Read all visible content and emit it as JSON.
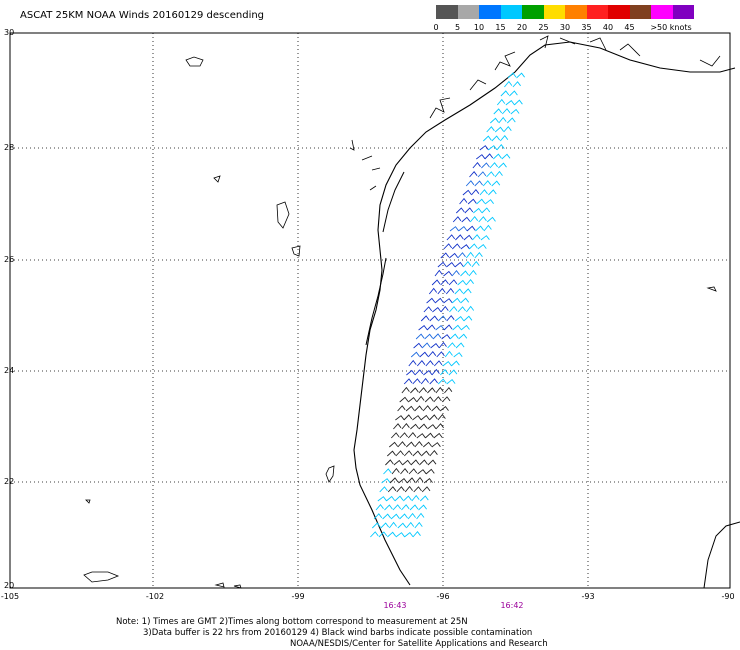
{
  "title": "ASCAT 25KM NOAA Winds 20160129 descending",
  "legend": {
    "colors": [
      "#555555",
      "#a8a8a8",
      "#0077ff",
      "#00c8ff",
      "#00a000",
      "#ffdd00",
      "#ff8000",
      "#ff2020",
      "#e00000",
      "#804020",
      "#ff00ff",
      "#8000c0"
    ],
    "labels": [
      "0",
      "5",
      "10",
      "15",
      "20",
      "25",
      "30",
      "35",
      "40",
      "45",
      ">50 knots"
    ]
  },
  "axes": {
    "lat_labels": [
      "30",
      "28",
      "26",
      "24",
      "22",
      "20"
    ],
    "lon_labels": [
      "-105",
      "-102",
      "-99",
      "-96",
      "-93",
      "-90"
    ]
  },
  "times": [
    {
      "text": "16:43",
      "color": "#9b009b"
    },
    {
      "text": "16:42",
      "color": "#9b009b"
    }
  ],
  "notes": [
    "Note: 1) Times are GMT 2)Times along bottom correspond to measurement at 25N",
    "3)Data buffer is 22 hrs from 20160129 4) Black wind barbs indicate possible contamination",
    "NOAA/NESDIS/Center for Satellite Applications and Research"
  ]
}
